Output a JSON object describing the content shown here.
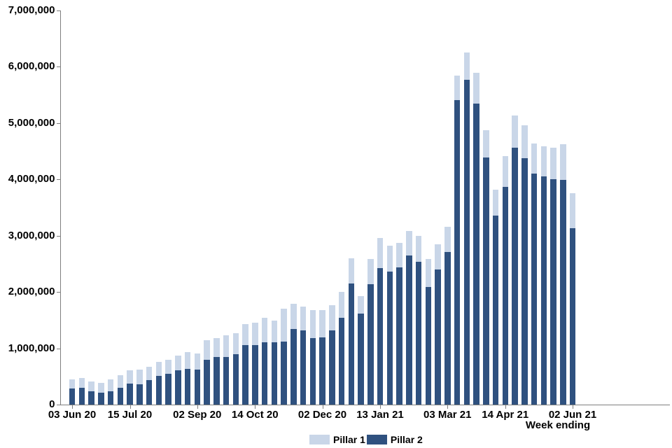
{
  "chart_data": {
    "type": "bar",
    "stacked": true,
    "title": "",
    "xlabel": "Week ending",
    "ylabel": "",
    "ylim": [
      0,
      7000000
    ],
    "grid": false,
    "legend_position": "bottom-center",
    "y_ticks": [
      0,
      1000000,
      2000000,
      3000000,
      4000000,
      5000000,
      6000000,
      7000000
    ],
    "y_tick_labels": [
      "0",
      "1,000,000",
      "2,000,000",
      "3,000,000",
      "4,000,000",
      "5,000,000",
      "6,000,000",
      "7,000,000"
    ],
    "categories": [
      "03 Jun 20",
      "10 Jun 20",
      "17 Jun 20",
      "24 Jun 20",
      "01 Jul 20",
      "08 Jul 20",
      "15 Jul 20",
      "22 Jul 20",
      "29 Jul 20",
      "05 Aug 20",
      "12 Aug 20",
      "19 Aug 20",
      "26 Aug 20",
      "02 Sep 20",
      "09 Sep 20",
      "16 Sep 20",
      "23 Sep 20",
      "30 Sep 20",
      "07 Oct 20",
      "14 Oct 20",
      "21 Oct 20",
      "28 Oct 20",
      "04 Nov 20",
      "11 Nov 20",
      "18 Nov 20",
      "25 Nov 20",
      "02 Dec 20",
      "09 Dec 20",
      "16 Dec 20",
      "23 Dec 20",
      "30 Dec 20",
      "06 Jan 21",
      "13 Jan 21",
      "20 Jan 21",
      "27 Jan 21",
      "03 Feb 21",
      "10 Feb 21",
      "17 Feb 21",
      "24 Feb 21",
      "03 Mar 21",
      "10 Mar 21",
      "17 Mar 21",
      "24 Mar 21",
      "31 Mar 21",
      "07 Apr 21",
      "14 Apr 21",
      "21 Apr 21",
      "28 Apr 21",
      "05 May 21",
      "12 May 21",
      "19 May 21",
      "26 May 21",
      "02 Jun 21"
    ],
    "x_tick_indices": [
      0,
      6,
      13,
      19,
      26,
      32,
      39,
      45,
      52
    ],
    "x_tick_labels": [
      "03 Jun 20",
      "15 Jul 20",
      "02 Sep 20",
      "14 Oct 20",
      "02 Dec 20",
      "13 Jan 21",
      "03 Mar 21",
      "14 Apr 21",
      "02 Jun 21"
    ],
    "stack_order_bottom_to_top": [
      "Pillar 2",
      "Pillar 1"
    ],
    "series": [
      {
        "name": "Pillar 1",
        "color": "#c9d6e8",
        "values": [
          170000,
          175000,
          175000,
          170000,
          205000,
          220000,
          235000,
          260000,
          230000,
          250000,
          250000,
          265000,
          305000,
          290000,
          345000,
          345000,
          380000,
          380000,
          380000,
          400000,
          435000,
          395000,
          580000,
          455000,
          430000,
          500000,
          485000,
          450000,
          465000,
          440000,
          315000,
          450000,
          535000,
          465000,
          425000,
          435000,
          470000,
          500000,
          440000,
          445000,
          430000,
          485000,
          540000,
          485000,
          455000,
          550000,
          570000,
          580000,
          530000,
          545000,
          560000,
          640000,
          620000
        ]
      },
      {
        "name": "Pillar 2",
        "color": "#2f517f",
        "values": [
          280000,
          300000,
          230000,
          210000,
          240000,
          300000,
          375000,
          360000,
          435000,
          510000,
          550000,
          610000,
          630000,
          620000,
          795000,
          840000,
          850000,
          890000,
          1050000,
          1050000,
          1110000,
          1100000,
          1120000,
          1340000,
          1315000,
          1180000,
          1190000,
          1320000,
          1540000,
          2155000,
          1610000,
          2135000,
          2420000,
          2355000,
          2440000,
          2640000,
          2530000,
          2085000,
          2400000,
          2705000,
          5405000,
          5765000,
          5345000,
          4390000,
          3355000,
          3865000,
          4565000,
          4375000,
          4105000,
          4045000,
          4005000,
          3985000,
          3135000
        ]
      }
    ]
  }
}
